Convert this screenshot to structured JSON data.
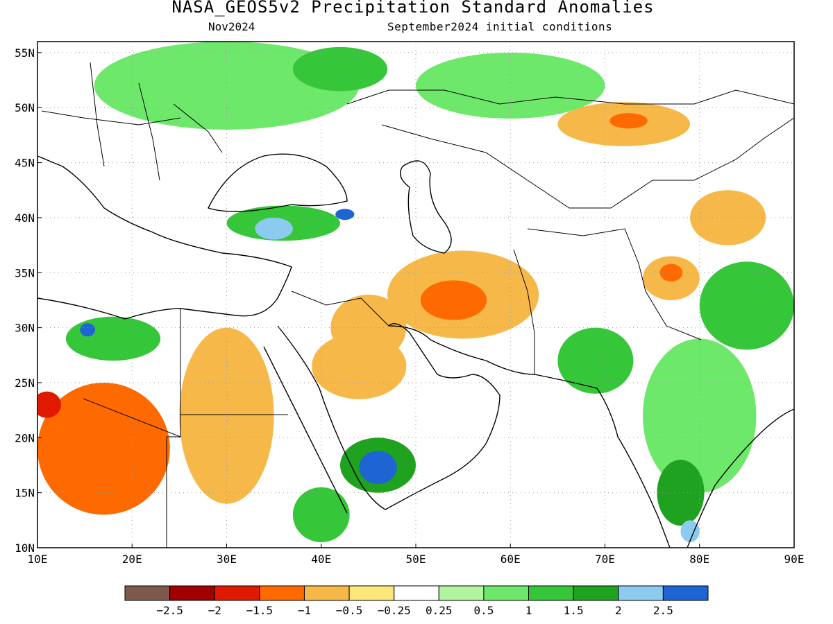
{
  "title": "NASA_GEOS5v2 Precipitation Standard Anomalies",
  "subtitle_month": "Nov2024",
  "subtitle_init": "September2024 initial conditions",
  "axes": {
    "lon_ticks": [
      10,
      20,
      30,
      40,
      50,
      60,
      70,
      80,
      90
    ],
    "lon_labels": [
      "10E",
      "20E",
      "30E",
      "40E",
      "50E",
      "60E",
      "70E",
      "80E",
      "90E"
    ],
    "lat_ticks": [
      10,
      15,
      20,
      25,
      30,
      35,
      40,
      45,
      50,
      55
    ],
    "lat_labels": [
      "10N",
      "15N",
      "20N",
      "25N",
      "30N",
      "35N",
      "40N",
      "45N",
      "50N",
      "55N"
    ],
    "lon_range": [
      10,
      90
    ],
    "lat_range": [
      10,
      56
    ]
  },
  "colorbar": {
    "colors": [
      "#7f5a4c",
      "#a00000",
      "#e01a00",
      "#ff6a00",
      "#f7b84a",
      "#fde67a",
      "#ffffff",
      "#b2f5a0",
      "#6ee86a",
      "#36c63a",
      "#1fa21f",
      "#8ccbef",
      "#1e64d2"
    ],
    "labels": [
      "−2.5",
      "−2",
      "−1.5",
      "−1",
      "−0.5",
      "−0.25",
      "0.25",
      "0.5",
      "1",
      "1.5",
      "2",
      "2.5"
    ]
  },
  "anomaly_regions": [
    {
      "name": "Eastern Europe / Russia",
      "category": "0.5",
      "color": "#6ee86a",
      "lon": 30,
      "lat": 52,
      "rx": 14,
      "ry": 4
    },
    {
      "name": "Central Russia",
      "category": "1",
      "color": "#36c63a",
      "lon": 42,
      "lat": 53.5,
      "rx": 5,
      "ry": 2
    },
    {
      "name": "Western Siberia",
      "category": "0.5",
      "color": "#6ee86a",
      "lon": 60,
      "lat": 52,
      "rx": 10,
      "ry": 3
    },
    {
      "name": "Kazakhstan",
      "category": "-0.5",
      "color": "#f7b84a",
      "lon": 72,
      "lat": 48.5,
      "rx": 7,
      "ry": 2
    },
    {
      "name": "Kazakhstan core",
      "category": "-1",
      "color": "#ff6a00",
      "lon": 72.5,
      "lat": 48.8,
      "rx": 2,
      "ry": 0.7
    },
    {
      "name": "Turkey",
      "category": "1",
      "color": "#36c63a",
      "lon": 36,
      "lat": 39.5,
      "rx": 6,
      "ry": 1.6
    },
    {
      "name": "Central Turkey",
      "category": "2",
      "color": "#8ccbef",
      "lon": 35,
      "lat": 39,
      "rx": 2,
      "ry": 1
    },
    {
      "name": "Eastern Turkey",
      "category": "2.5",
      "color": "#1e64d2",
      "lon": 42.5,
      "lat": 40.3,
      "rx": 1,
      "ry": 0.5
    },
    {
      "name": "Iran",
      "category": "-0.5",
      "color": "#f7b84a",
      "lon": 55,
      "lat": 33,
      "rx": 8,
      "ry": 4
    },
    {
      "name": "Iran core",
      "category": "-1",
      "color": "#ff6a00",
      "lon": 54,
      "lat": 32.5,
      "rx": 3.5,
      "ry": 1.8
    },
    {
      "name": "Iraq",
      "category": "-0.5",
      "color": "#f7b84a",
      "lon": 45,
      "lat": 30,
      "rx": 4,
      "ry": 3
    },
    {
      "name": "Saudi Arabia",
      "category": "-0.5",
      "color": "#f7b84a",
      "lon": 44,
      "lat": 26.5,
      "rx": 5,
      "ry": 3
    },
    {
      "name": "Egypt / Sudan",
      "category": "-0.5",
      "color": "#f7b84a",
      "lon": 30,
      "lat": 22,
      "rx": 5,
      "ry": 8
    },
    {
      "name": "Chad / Niger",
      "category": "-1",
      "color": "#ff6a00",
      "lon": 17,
      "lat": 19,
      "rx": 7,
      "ry": 6
    },
    {
      "name": "Chad core",
      "category": "-1.5",
      "color": "#e01a00",
      "lon": 11,
      "lat": 23,
      "rx": 1.5,
      "ry": 1.2
    },
    {
      "name": "Libya coast",
      "category": "1",
      "color": "#36c63a",
      "lon": 18,
      "lat": 29,
      "rx": 5,
      "ry": 2
    },
    {
      "name": "Libya coast core",
      "category": "2.5",
      "color": "#1e64d2",
      "lon": 15.3,
      "lat": 29.8,
      "rx": 0.8,
      "ry": 0.6
    },
    {
      "name": "Yemen",
      "category": "1.5",
      "color": "#1fa21f",
      "lon": 46,
      "lat": 17.5,
      "rx": 4,
      "ry": 2.5
    },
    {
      "name": "Yemen core",
      "category": "2.5",
      "color": "#1e64d2",
      "lon": 46,
      "lat": 17.3,
      "rx": 2,
      "ry": 1.5
    },
    {
      "name": "Ethiopia",
      "category": "1",
      "color": "#36c63a",
      "lon": 40,
      "lat": 13,
      "rx": 3,
      "ry": 2.5
    },
    {
      "name": "Pakistan",
      "category": "1",
      "color": "#36c63a",
      "lon": 69,
      "lat": 27,
      "rx": 4,
      "ry": 3
    },
    {
      "name": "India",
      "category": "0.5",
      "color": "#6ee86a",
      "lon": 80,
      "lat": 22,
      "rx": 6,
      "ry": 7
    },
    {
      "name": "South India",
      "category": "1.5",
      "color": "#1fa21f",
      "lon": 78,
      "lat": 15,
      "rx": 2.5,
      "ry": 3
    },
    {
      "name": "South India tip",
      "category": "2",
      "color": "#8ccbef",
      "lon": 79,
      "lat": 11.5,
      "rx": 1,
      "ry": 1
    },
    {
      "name": "Tibet / Nepal",
      "category": "1",
      "color": "#36c63a",
      "lon": 85,
      "lat": 32,
      "rx": 5,
      "ry": 4
    },
    {
      "name": "Kashmir",
      "category": "-0.5",
      "color": "#f7b84a",
      "lon": 77,
      "lat": 34.5,
      "rx": 3,
      "ry": 2
    },
    {
      "name": "Kashmir core",
      "category": "-1",
      "color": "#ff6a00",
      "lon": 77,
      "lat": 35,
      "rx": 1.2,
      "ry": 0.8
    },
    {
      "name": "Xinjiang",
      "category": "-0.5",
      "color": "#f7b84a",
      "lon": 83,
      "lat": 40,
      "rx": 4,
      "ry": 2.5
    }
  ]
}
